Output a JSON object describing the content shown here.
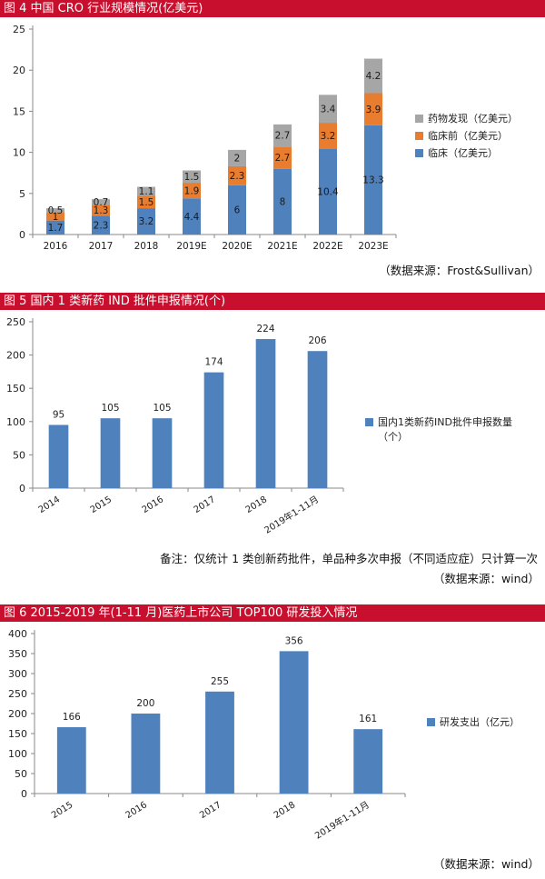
{
  "figure4": {
    "heading": "图 4    中国 CRO 行业规模情况(亿美元)",
    "source": "（数据来源：Frost&Sullivan）"
  },
  "figure5": {
    "heading": "图 5    国内 1 类新药 IND 批件申报情况(个)",
    "note": "备注：仅统计 1 类创新药批件，单品种多次申报（不同适应症）只计算一次",
    "source": "（数据来源：wind）"
  },
  "figure6": {
    "heading": "图 6    2015-2019 年(1-11 月)医药上市公司 TOP100 研发投入情况",
    "source": "（数据来源：wind）"
  },
  "colors": {
    "blue": "#4f81bd",
    "orange": "#e87c2f",
    "gray": "#a6a6a6",
    "banner": "#c8102e"
  },
  "chart_data": [
    {
      "type": "bar",
      "stacked": true,
      "categories": [
        "2016",
        "2017",
        "2018",
        "2019E",
        "2020E",
        "2021E",
        "2022E",
        "2023E"
      ],
      "series": [
        {
          "name": "临床（亿美元）",
          "color": "#4f81bd",
          "values": [
            1.7,
            2.3,
            3.2,
            4.4,
            6,
            8,
            10.4,
            13.3
          ]
        },
        {
          "name": "临床前（亿美元）",
          "color": "#e87c2f",
          "values": [
            1,
            1.3,
            1.5,
            1.9,
            2.3,
            2.7,
            3.2,
            3.9
          ]
        },
        {
          "name": "药物发现（亿美元）",
          "color": "#a6a6a6",
          "values": [
            0.5,
            0.7,
            1.1,
            1.5,
            2,
            2.7,
            3.4,
            4.2
          ]
        }
      ],
      "ylim": [
        0,
        25
      ],
      "yticks": [
        0,
        5,
        10,
        15,
        20,
        25
      ],
      "legend": "right"
    },
    {
      "type": "bar",
      "categories": [
        "2014",
        "2015",
        "2016",
        "2017",
        "2018",
        "2019年1-11月"
      ],
      "series": [
        {
          "name": "国内1类新药IND批件申报数量（个）",
          "color": "#4f81bd",
          "values": [
            95,
            105,
            105,
            174,
            224,
            206
          ]
        }
      ],
      "ylim": [
        0,
        250
      ],
      "yticks": [
        0,
        50,
        100,
        150,
        200,
        250
      ],
      "legend": "right"
    },
    {
      "type": "bar",
      "categories": [
        "2015",
        "2016",
        "2017",
        "2018",
        "2019年1-11月"
      ],
      "series": [
        {
          "name": "研发支出（亿元）",
          "color": "#4f81bd",
          "values": [
            166,
            200,
            255,
            356,
            161
          ]
        }
      ],
      "ylim": [
        0,
        400
      ],
      "yticks": [
        0,
        50,
        100,
        150,
        200,
        250,
        300,
        350,
        400
      ],
      "legend": "right"
    }
  ]
}
